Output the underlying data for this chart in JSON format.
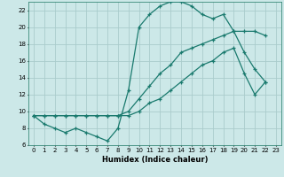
{
  "title": "",
  "xlabel": "Humidex (Indice chaleur)",
  "bg_color": "#cce8e8",
  "grid_color": "#aacccc",
  "line_color": "#1a7a6e",
  "xlim": [
    -0.5,
    23.5
  ],
  "ylim": [
    6,
    23
  ],
  "xticks": [
    0,
    1,
    2,
    3,
    4,
    5,
    6,
    7,
    8,
    9,
    10,
    11,
    12,
    13,
    14,
    15,
    16,
    17,
    18,
    19,
    20,
    21,
    22,
    23
  ],
  "yticks": [
    6,
    8,
    10,
    12,
    14,
    16,
    18,
    20,
    22
  ],
  "line1_x": [
    0,
    1,
    2,
    3,
    4,
    5,
    6,
    7,
    8,
    9,
    10,
    11,
    12,
    13,
    14,
    15,
    16,
    17,
    18,
    19,
    20,
    21,
    22
  ],
  "line1_y": [
    9.5,
    8.5,
    8.0,
    7.5,
    8.0,
    7.5,
    7.0,
    6.5,
    8.0,
    12.5,
    20.0,
    21.5,
    22.5,
    23.0,
    23.0,
    22.5,
    21.5,
    21.0,
    21.5,
    19.5,
    17.0,
    15.0,
    13.5
  ],
  "line2_x": [
    0,
    1,
    2,
    3,
    4,
    5,
    6,
    7,
    8,
    9,
    10,
    11,
    12,
    13,
    14,
    15,
    16,
    17,
    18,
    19,
    20,
    21,
    22
  ],
  "line2_y": [
    9.5,
    9.5,
    9.5,
    9.5,
    9.5,
    9.5,
    9.5,
    9.5,
    9.5,
    10.0,
    11.5,
    13.0,
    14.5,
    15.5,
    17.0,
    17.5,
    18.0,
    18.5,
    19.0,
    19.5,
    19.5,
    19.5,
    19.0
  ],
  "line3_x": [
    0,
    1,
    2,
    3,
    4,
    5,
    6,
    7,
    8,
    9,
    10,
    11,
    12,
    13,
    14,
    15,
    16,
    17,
    18,
    19,
    20,
    21,
    22
  ],
  "line3_y": [
    9.5,
    9.5,
    9.5,
    9.5,
    9.5,
    9.5,
    9.5,
    9.5,
    9.5,
    9.5,
    10.0,
    11.0,
    11.5,
    12.5,
    13.5,
    14.5,
    15.5,
    16.0,
    17.0,
    17.5,
    14.5,
    12.0,
    13.5
  ]
}
